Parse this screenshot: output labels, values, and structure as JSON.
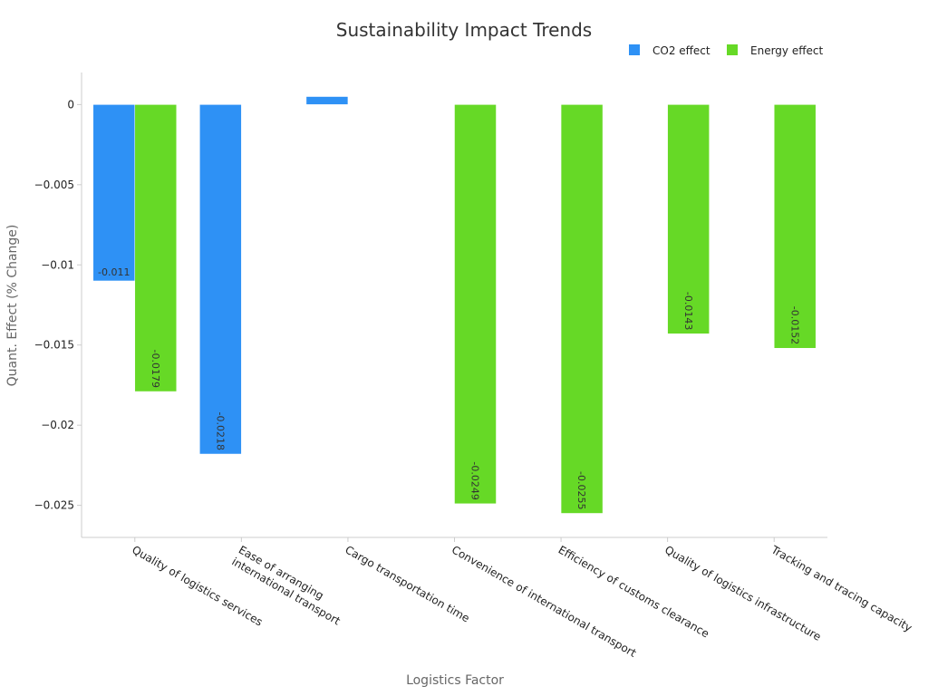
{
  "chart_data": {
    "type": "bar",
    "title": "Sustainability Impact Trends",
    "xlabel": "Logistics Factor",
    "ylabel": "Quant. Effect (% Change)",
    "ylim": [
      -0.027,
      0.002
    ],
    "yticks": [
      0,
      -0.005,
      -0.01,
      -0.015,
      -0.02,
      -0.025
    ],
    "ytick_labels": [
      "0",
      "−0.005",
      "−0.01",
      "−0.015",
      "−0.02",
      "−0.025"
    ],
    "legend_position": "top-right",
    "grid": false,
    "categories": [
      "Quality of logistics services",
      "Ease of arranging international transport",
      "Cargo transportation time",
      "Convenience of international transport",
      "Efficiency of customs clearance",
      "Quality of logistics infrastructure",
      "Tracking and tracing capacity"
    ],
    "category_lines": [
      [
        "Quality of logistics services"
      ],
      [
        "Ease of arranging",
        "international transport"
      ],
      [
        "Cargo transportation time"
      ],
      [
        "Convenience of international transport"
      ],
      [
        "Efficiency of customs clearance"
      ],
      [
        "Quality of logistics infrastructure"
      ],
      [
        "Tracking and tracing capacity"
      ]
    ],
    "series": [
      {
        "name": "CO2 effect",
        "color": "#2e91f5",
        "values": [
          -0.011,
          -0.0218,
          0.0005,
          null,
          null,
          null,
          null
        ],
        "labels": [
          "-0.011",
          "-0.0218",
          "",
          "",
          "",
          "",
          ""
        ]
      },
      {
        "name": "Energy effect",
        "color": "#66d926",
        "values": [
          -0.0179,
          null,
          null,
          -0.0249,
          -0.0255,
          -0.0143,
          -0.0152
        ],
        "labels": [
          "-0.0179",
          "",
          "",
          "-0.0249",
          "-0.0255",
          "-0.0143",
          "-0.0152"
        ]
      }
    ]
  }
}
